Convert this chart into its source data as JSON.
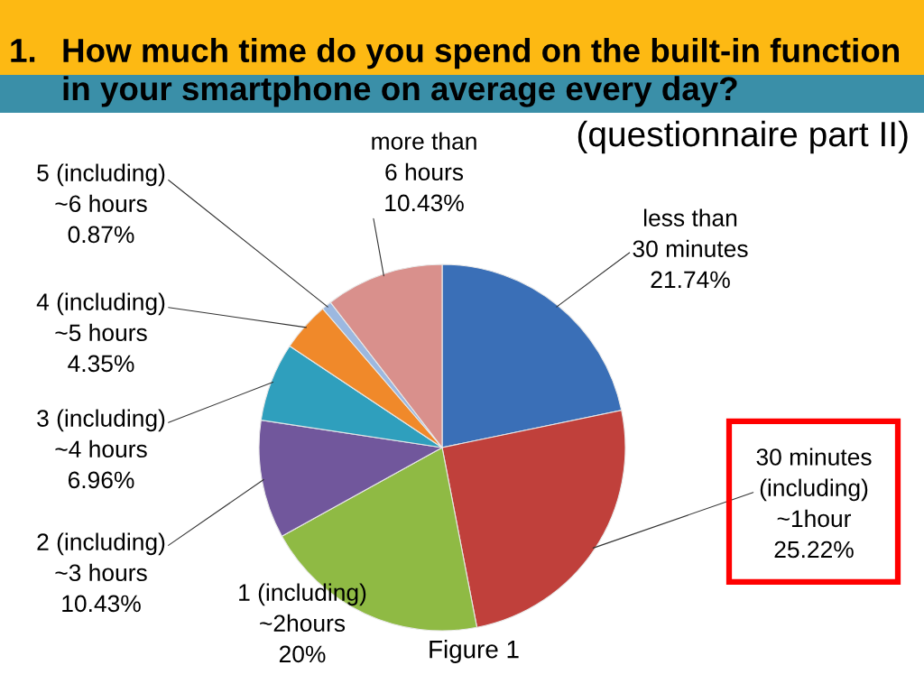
{
  "chart_data": {
    "type": "pie",
    "title": "1. How much time do you spend on the built-in function in your smartphone on average every day?",
    "subtitle": "(questionnaire part II)",
    "categories": [
      "less than\n30 minutes",
      "30 minutes\n(including)\n~1hour",
      "1 (including)\n~2hours",
      "2 (including)\n~3 hours",
      "3 (including)\n~4 hours",
      "4 (including)\n~5 hours",
      "5 (including)\n~6 hours",
      "more than\n6 hours"
    ],
    "values": [
      21.74,
      25.22,
      20,
      10.43,
      6.96,
      4.35,
      0.87,
      10.43
    ],
    "value_labels": [
      "21.74%",
      "25.22%",
      "20%",
      "10.43%",
      "6.96%",
      "4.35%",
      "0.87%",
      "10.43%"
    ],
    "colors": [
      "#3a6fb7",
      "#c0403b",
      "#8fba44",
      "#71579c",
      "#2f9fbd",
      "#f0892a",
      "#9cb8e0",
      "#d9908c"
    ],
    "annotations": [
      "Figure 1"
    ]
  }
}
